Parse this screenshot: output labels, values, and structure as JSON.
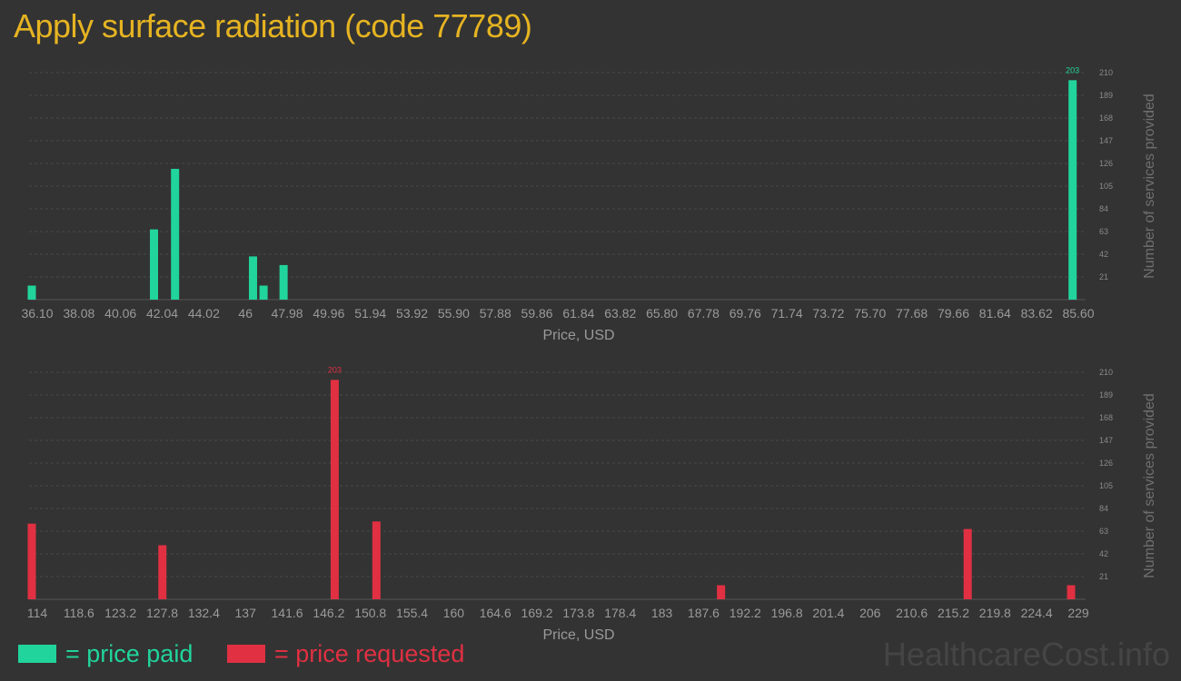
{
  "title": "Apply surface radiation (code 77789)",
  "watermark": "HealthcareCost.info",
  "colors": {
    "paid": "#21d49b",
    "requested": "#e03042",
    "title": "#e6b422"
  },
  "legend": {
    "paid": "= price paid",
    "requested": "= price requested"
  },
  "chart_data": [
    {
      "type": "bar",
      "xlabel": "Price, USD",
      "ylabel": "Number of services provided",
      "x_ticks": [
        "36.10",
        "38.08",
        "40.06",
        "42.04",
        "44.02",
        "46",
        "47.98",
        "49.96",
        "51.94",
        "53.92",
        "55.90",
        "57.88",
        "59.86",
        "61.84",
        "63.82",
        "65.80",
        "67.78",
        "69.76",
        "71.74",
        "73.72",
        "75.70",
        "77.68",
        "79.66",
        "81.64",
        "83.62",
        "85.60"
      ],
      "xlim": [
        36.1,
        85.6
      ],
      "ylim": [
        0,
        210
      ],
      "y_ticks": [
        21,
        42,
        63,
        84,
        105,
        126,
        147,
        168,
        189,
        210
      ],
      "color_key": "paid",
      "max_label": "203",
      "bars": [
        {
          "x": 36.1,
          "y": 13
        },
        {
          "x": 41.9,
          "y": 65
        },
        {
          "x": 42.9,
          "y": 121
        },
        {
          "x": 46.6,
          "y": 40
        },
        {
          "x": 47.1,
          "y": 13
        },
        {
          "x": 48.05,
          "y": 32
        },
        {
          "x": 85.5,
          "y": 203
        }
      ]
    },
    {
      "type": "bar",
      "xlabel": "Price, USD",
      "ylabel": "Number of services provided",
      "x_ticks": [
        "114",
        "118.6",
        "123.2",
        "127.8",
        "132.4",
        "137",
        "141.6",
        "146.2",
        "150.8",
        "155.4",
        "160",
        "164.6",
        "169.2",
        "173.8",
        "178.4",
        "183",
        "187.6",
        "192.2",
        "196.8",
        "201.4",
        "206",
        "210.6",
        "215.2",
        "219.8",
        "224.4",
        "229"
      ],
      "xlim": [
        114,
        229
      ],
      "ylim": [
        0,
        210
      ],
      "y_ticks": [
        21,
        42,
        63,
        84,
        105,
        126,
        147,
        168,
        189,
        210
      ],
      "color_key": "requested",
      "max_label": "203",
      "bars": [
        {
          "x": 114.0,
          "y": 70
        },
        {
          "x": 128.4,
          "y": 50
        },
        {
          "x": 147.4,
          "y": 203
        },
        {
          "x": 152.0,
          "y": 72
        },
        {
          "x": 190.0,
          "y": 13
        },
        {
          "x": 217.2,
          "y": 65
        },
        {
          "x": 228.6,
          "y": 13
        }
      ]
    }
  ]
}
